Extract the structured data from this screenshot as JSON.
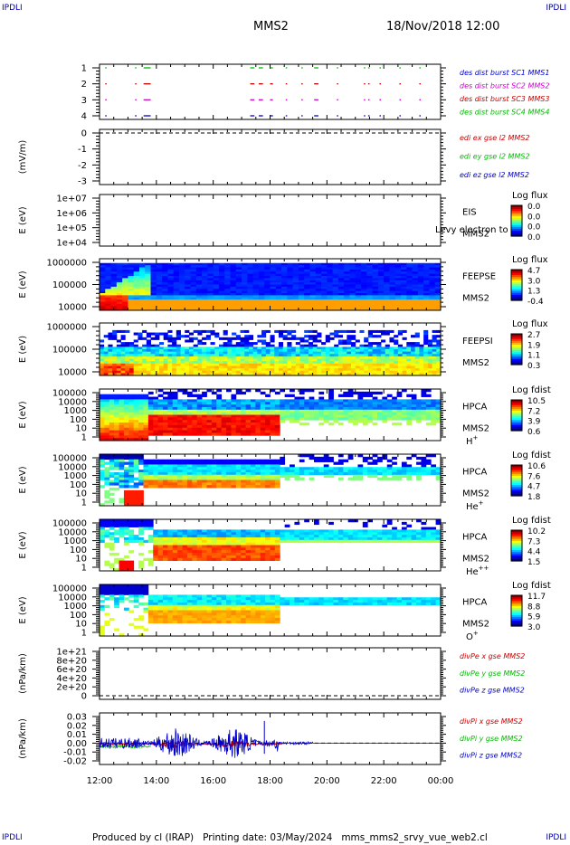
{
  "header": {
    "corner_tl": "IPDLI",
    "corner_tr": "IPDLI",
    "corner_bl": "IPDLI",
    "corner_br": "IPDLI",
    "spacecraft": "MMS2",
    "date": "18/Nov/2018 12:00"
  },
  "footer": {
    "produced_by": "Produced by cl (IRAP)",
    "printing_date": "Printing date: 03/May/2024",
    "script_name": "mms_mms2_srvy_vue_web2.cl"
  },
  "colors": {
    "red": "#cc0000",
    "green": "#00bb00",
    "blue": "#0000cc",
    "magenta": "#cc00cc",
    "label_blue": "#0000aa"
  },
  "chart_data": [
    {
      "type": "scatter",
      "name": "burst",
      "yticks": [
        "1",
        "2",
        "3",
        "4"
      ],
      "ylim": [
        0.5,
        4.5
      ],
      "legend": [
        {
          "label": "des dist burst SC1 MMS1",
          "color": "#0000cc"
        },
        {
          "label": "des dist burst SC2 MMS2",
          "color": "#cc00cc"
        },
        {
          "label": "des dist burst SC3 MMS3",
          "color": "#cc0000"
        },
        {
          "label": "des dist burst SC4 MMS4",
          "color": "#00bb00"
        }
      ],
      "intervals_hours": [
        [
          12.2,
          12.25
        ],
        [
          13.25,
          13.3
        ],
        [
          13.55,
          13.8
        ],
        [
          17.3,
          17.45
        ],
        [
          17.6,
          17.75
        ],
        [
          18.0,
          18.1
        ],
        [
          18.55,
          18.6
        ],
        [
          19.1,
          19.15
        ],
        [
          19.55,
          19.7
        ],
        [
          20.35,
          20.4
        ],
        [
          21.3,
          21.35
        ],
        [
          21.45,
          21.5
        ],
        [
          21.85,
          21.9
        ],
        [
          22.55,
          22.6
        ],
        [
          23.25,
          23.3
        ]
      ]
    },
    {
      "type": "line",
      "name": "edi",
      "ylabel": "(mV/m)",
      "yticks": [
        "0",
        "-1",
        "-2",
        "-3"
      ],
      "ylim": [
        -3.5,
        0.3
      ],
      "legend": [
        {
          "label": "edi ex gse l2 MMS2",
          "color": "#cc0000"
        },
        {
          "label": "edi ey gse l2 MMS2",
          "color": "#00bb00"
        },
        {
          "label": "edi ez gse l2 MMS2",
          "color": "#0000cc"
        }
      ]
    },
    {
      "type": "heatmap",
      "name": "eis",
      "ylabel": "E (eV)",
      "yticks": [
        "1e+07",
        "1e+06",
        "1e+05",
        "1e+04"
      ],
      "right_labels": [
        "EIS",
        "MMS2"
      ],
      "overlay_text": "Levy electron to",
      "colorbar_title": "Log flux",
      "colorbar_ticks": [
        "0.0",
        "0.0",
        "0.0",
        "0.0"
      ]
    },
    {
      "type": "heatmap",
      "name": "feepse",
      "ylabel": "E (eV)",
      "yticks": [
        "1000000",
        "100000",
        "10000"
      ],
      "right_labels": [
        "FEEPSE",
        "MMS2"
      ],
      "colorbar_title": "Log flux",
      "colorbar_ticks": [
        "4.7",
        "3.0",
        "1.3",
        "-0.4"
      ]
    },
    {
      "type": "heatmap",
      "name": "feepsi",
      "ylabel": "E (eV)",
      "yticks": [
        "1000000",
        "100000",
        "10000"
      ],
      "right_labels": [
        "FEEPSI",
        "MMS2"
      ],
      "colorbar_title": "Log flux",
      "colorbar_ticks": [
        "2.7",
        "1.9",
        "1.1",
        "0.3"
      ]
    },
    {
      "type": "heatmap",
      "name": "hpca-h",
      "ylabel": "E (eV)",
      "yticks": [
        "100000",
        "10000",
        "1000",
        "100",
        "10",
        "1"
      ],
      "right_labels": [
        "HPCA",
        "MMS2"
      ],
      "species": "H",
      "species_sup": "+",
      "colorbar_title": "Log fdist",
      "colorbar_ticks": [
        "10.5",
        "7.2",
        "3.9",
        "0.6"
      ]
    },
    {
      "type": "heatmap",
      "name": "hpca-he",
      "ylabel": "E (eV)",
      "yticks": [
        "100000",
        "10000",
        "1000",
        "100",
        "10",
        "1"
      ],
      "right_labels": [
        "HPCA",
        "MMS2"
      ],
      "species": "He",
      "species_sup": "+",
      "colorbar_title": "Log fdist",
      "colorbar_ticks": [
        "10.6",
        "7.6",
        "4.7",
        "1.8"
      ]
    },
    {
      "type": "heatmap",
      "name": "hpca-hepp",
      "ylabel": "E (eV)",
      "yticks": [
        "100000",
        "10000",
        "1000",
        "100",
        "10",
        "1"
      ],
      "right_labels": [
        "HPCA",
        "MMS2"
      ],
      "species": "He",
      "species_sup": "++",
      "colorbar_title": "Log fdist",
      "colorbar_ticks": [
        "10.2",
        "7.3",
        "4.4",
        "1.5"
      ]
    },
    {
      "type": "heatmap",
      "name": "hpca-o",
      "ylabel": "E (eV)",
      "yticks": [
        "100000",
        "10000",
        "1000",
        "100",
        "10",
        "1"
      ],
      "right_labels": [
        "HPCA",
        "MMS2"
      ],
      "species": "O",
      "species_sup": "+",
      "colorbar_title": "Log fdist",
      "colorbar_ticks": [
        "11.7",
        "8.8",
        "5.9",
        "3.0"
      ]
    },
    {
      "type": "line",
      "name": "divpe",
      "ylabel": "(nPa/km)",
      "yticks": [
        "1e+21",
        "8e+20",
        "6e+20",
        "4e+20",
        "2e+20",
        "0"
      ],
      "ylim": [
        0,
        1e+21
      ],
      "legend": [
        {
          "label": "divPe x gse MMS2",
          "color": "#cc0000"
        },
        {
          "label": "divPe y gse MMS2",
          "color": "#00bb00"
        },
        {
          "label": "divPe z gse MMS2",
          "color": "#0000cc"
        }
      ]
    },
    {
      "type": "line",
      "name": "divpi",
      "ylabel": "(nPa/km)",
      "yticks": [
        "0.03",
        "0.02",
        "0.01",
        "0.00",
        "-0.01",
        "-0.02"
      ],
      "ylim": [
        -0.025,
        0.035
      ],
      "legend": [
        {
          "label": "divPi x gse MMS2",
          "color": "#cc0000"
        },
        {
          "label": "divPi y gse MMS2",
          "color": "#00bb00"
        },
        {
          "label": "divPi z gse MMS2",
          "color": "#0000cc"
        }
      ]
    }
  ],
  "xaxis": {
    "ticks": [
      "12:00",
      "14:00",
      "16:00",
      "18:00",
      "20:00",
      "22:00",
      "00:00"
    ],
    "range_hours": [
      12,
      24
    ]
  }
}
